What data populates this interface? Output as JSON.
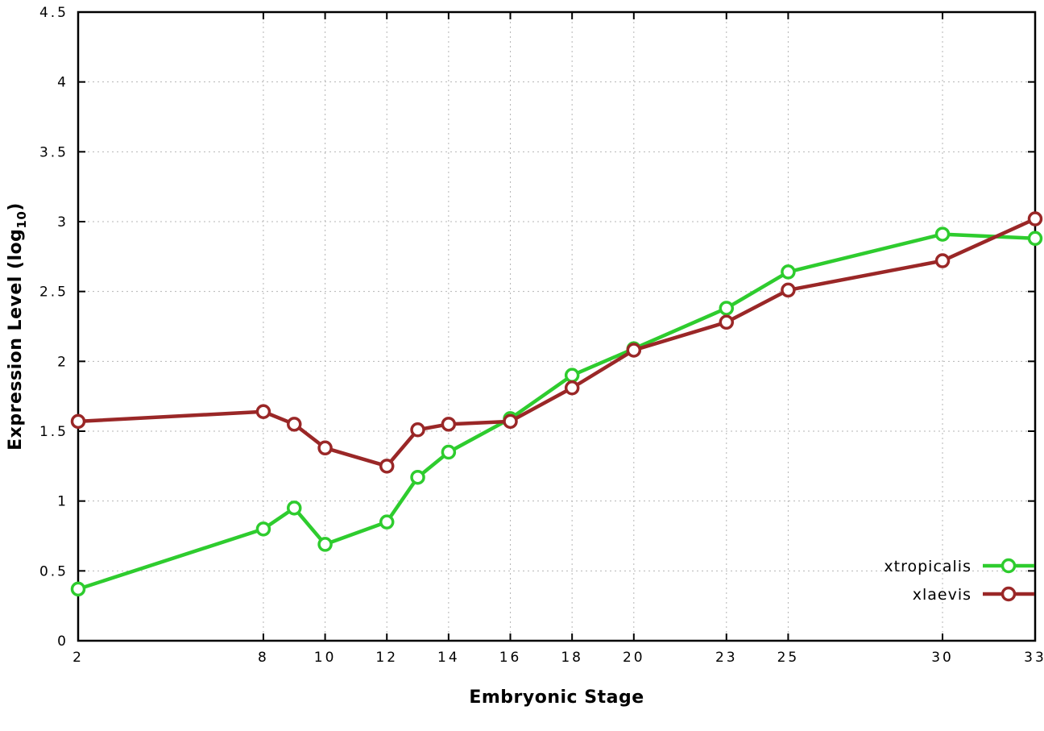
{
  "chart_data": {
    "type": "line",
    "title": "",
    "xlabel": "Embryonic Stage",
    "ylabel": "Expression Level (log10)",
    "ylabel_parts": {
      "pre": "Expression Level (log",
      "sub": "10",
      "post": ")"
    },
    "xlim": [
      2,
      33
    ],
    "ylim": [
      0,
      4.5
    ],
    "grid": true,
    "legend_position": "bottom-right",
    "marker": "open-circle",
    "x": [
      2,
      8,
      9,
      10,
      12,
      13,
      14,
      16,
      18,
      20,
      23,
      25,
      30,
      33
    ],
    "xticks": [
      {
        "v": 2,
        "label": "2"
      },
      {
        "v": 8,
        "label": "8"
      },
      {
        "v": 10,
        "label": "10"
      },
      {
        "v": 12,
        "label": "12"
      },
      {
        "v": 14,
        "label": "14"
      },
      {
        "v": 16,
        "label": "16"
      },
      {
        "v": 18,
        "label": "18"
      },
      {
        "v": 20,
        "label": "20"
      },
      {
        "v": 23,
        "label": "23"
      },
      {
        "v": 25,
        "label": "25"
      },
      {
        "v": 30,
        "label": "30"
      },
      {
        "v": 33,
        "label": "33"
      }
    ],
    "yticks": [
      {
        "v": 0,
        "label": "0"
      },
      {
        "v": 0.5,
        "label": "0.5"
      },
      {
        "v": 1,
        "label": "1"
      },
      {
        "v": 1.5,
        "label": "1.5"
      },
      {
        "v": 2,
        "label": "2"
      },
      {
        "v": 2.5,
        "label": "2.5"
      },
      {
        "v": 3,
        "label": "3"
      },
      {
        "v": 3.5,
        "label": "3.5"
      },
      {
        "v": 4,
        "label": "4"
      },
      {
        "v": 4.5,
        "label": "4.5"
      }
    ],
    "series": [
      {
        "name": "xtropicalis",
        "color": "#2ecc2e",
        "values": [
          0.37,
          0.8,
          0.95,
          0.69,
          0.85,
          1.17,
          1.35,
          1.59,
          1.9,
          2.09,
          2.38,
          2.64,
          2.91,
          2.88
        ]
      },
      {
        "name": "xlaevis",
        "color": "#9a2727",
        "values": [
          1.57,
          1.64,
          1.55,
          1.38,
          1.25,
          1.51,
          1.55,
          1.57,
          1.81,
          2.08,
          2.28,
          2.51,
          2.72,
          3.02
        ]
      }
    ],
    "colors": {
      "grid": "#b5b5b5",
      "axis": "#000000",
      "text": "#000000",
      "marker_fill": "#ffffff"
    }
  }
}
